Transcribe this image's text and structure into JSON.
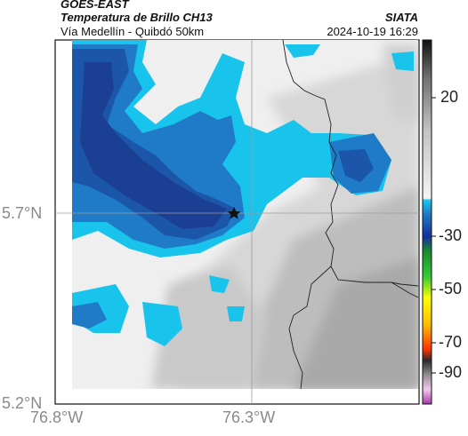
{
  "header": {
    "satellite": "GOES-EAST",
    "product": "Temperatura de Brillo CH13",
    "region": "Vía Medellín - Quibdó 50km",
    "agency": "SIATA",
    "datetime": "2024-10-19 16:29"
  },
  "axes": {
    "lat_ticks": [
      "5.7°N",
      "5.2°N"
    ],
    "lon_ticks": [
      "76.8°W",
      "76.3°W"
    ]
  },
  "colorbar": {
    "ticks": [
      "20",
      "-30",
      "-50",
      "-70",
      "-90"
    ]
  },
  "colors": {
    "deep_blue": "#1b3f93",
    "mid_blue": "#1f78c4",
    "cyan": "#16c0e8",
    "light_gray": "#eeeeee",
    "gray": "#b8b8b8",
    "dark_gray": "#8c8c8c",
    "border_line": "#222222",
    "grid_line": "#9c9c9c"
  },
  "marker": {
    "icon": "star-icon",
    "meaning": "location marker"
  }
}
